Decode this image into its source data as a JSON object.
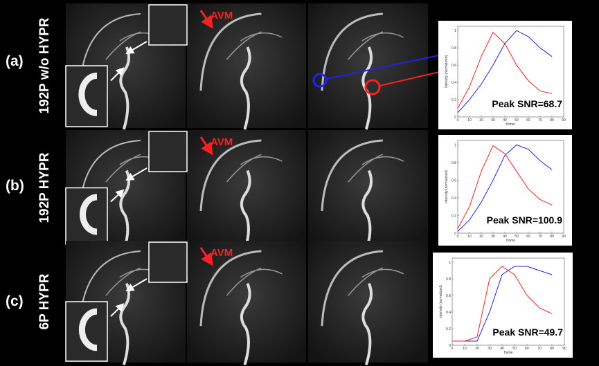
{
  "figure": {
    "rows": [
      {
        "label": "(a)",
        "method": "192P w/o HYPR",
        "marker": "AVM"
      },
      {
        "label": "(b)",
        "method": "192P  HYPR",
        "marker": "AVM"
      },
      {
        "label": "(c)",
        "method": "6P  HYPR",
        "marker": "AVM"
      }
    ]
  },
  "chart_data": [
    {
      "type": "line",
      "annotation": "Peak SNR=68.7",
      "x_label": "frame",
      "y_label": "intensity (normalized)",
      "x": [
        0,
        10,
        20,
        30,
        40,
        50,
        60,
        70,
        80
      ],
      "xlim": [
        0,
        90
      ],
      "ylim": [
        0,
        1.05
      ],
      "xticks": [
        0,
        10,
        20,
        30,
        40,
        50,
        60,
        70,
        80,
        90
      ],
      "yticks": [
        0,
        0.2,
        0.4,
        0.6,
        0.8,
        1
      ],
      "series": [
        {
          "color": "#2222dd",
          "values": [
            0.05,
            0.2,
            0.38,
            0.6,
            0.85,
            1.0,
            0.93,
            0.8,
            0.7
          ]
        },
        {
          "color": "#ee2222",
          "values": [
            0.1,
            0.35,
            0.7,
            0.98,
            0.85,
            0.6,
            0.42,
            0.3,
            0.27
          ]
        }
      ]
    },
    {
      "type": "line",
      "annotation": "Peak SNR=100.9",
      "x_label": "frame",
      "y_label": "intensity (normalized)",
      "x": [
        0,
        10,
        20,
        30,
        40,
        50,
        60,
        70,
        80
      ],
      "xlim": [
        0,
        90
      ],
      "ylim": [
        0,
        1.05
      ],
      "xticks": [
        0,
        10,
        20,
        30,
        40,
        50,
        60,
        70,
        80,
        90
      ],
      "yticks": [
        0,
        0.2,
        0.4,
        0.6,
        0.8,
        1
      ],
      "series": [
        {
          "color": "#2222dd",
          "values": [
            0.02,
            0.15,
            0.35,
            0.6,
            0.88,
            1.0,
            0.95,
            0.82,
            0.72
          ]
        },
        {
          "color": "#ee2222",
          "values": [
            0.05,
            0.3,
            0.7,
            0.99,
            0.9,
            0.7,
            0.5,
            0.38,
            0.32
          ]
        }
      ]
    },
    {
      "type": "line",
      "annotation": "Peak SNR=49.7",
      "x_label": "frame",
      "y_label": "intensity (normalized)",
      "x": [
        0,
        10,
        20,
        30,
        40,
        50,
        60,
        70,
        80
      ],
      "xlim": [
        0,
        90
      ],
      "ylim": [
        0,
        1.05
      ],
      "xticks": [
        0,
        10,
        20,
        30,
        40,
        50,
        60,
        70,
        80,
        90
      ],
      "yticks": [
        0,
        0.2,
        0.4,
        0.6,
        0.8,
        1
      ],
      "series": [
        {
          "color": "#2222dd",
          "values": [
            0.05,
            0.05,
            0.05,
            0.4,
            0.85,
            0.95,
            0.95,
            0.9,
            0.85
          ]
        },
        {
          "color": "#ee2222",
          "values": [
            0.05,
            0.05,
            0.1,
            0.8,
            0.95,
            0.85,
            0.6,
            0.45,
            0.38
          ]
        }
      ]
    }
  ]
}
